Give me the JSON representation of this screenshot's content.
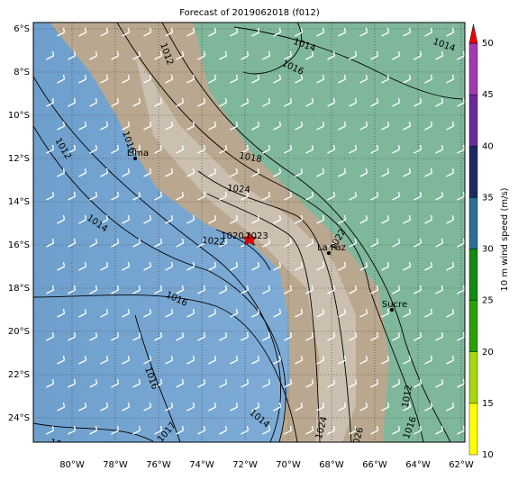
{
  "title": "Forecast of 2019062018 (f012)",
  "lat_labels": [
    "6°S",
    "8°S",
    "10°S",
    "12°S",
    "14°S",
    "16°S",
    "18°S",
    "20°S",
    "22°S",
    "24°S"
  ],
  "lon_labels": [
    "80°W",
    "78°W",
    "76°W",
    "74°W",
    "72°W",
    "70°W",
    "68°W",
    "66°W",
    "64°W",
    "62°W"
  ],
  "cities": [
    "Lima",
    "La Paz",
    "Sucre"
  ],
  "contour_labels": [
    "1014",
    "1016",
    "1014",
    "1012",
    "1012",
    "1016",
    "1014",
    "1018",
    "1024",
    "1020",
    "1022",
    "1023",
    "1016",
    "1016",
    "1014",
    "1017",
    "1018",
    "1024",
    "1026",
    "1016",
    "1012",
    "1022"
  ],
  "colorbar": {
    "label": "10 m wind speed (m/s)",
    "ticks": [
      "10",
      "15",
      "20",
      "25",
      "30",
      "35",
      "40",
      "45",
      "50"
    ]
  }
}
